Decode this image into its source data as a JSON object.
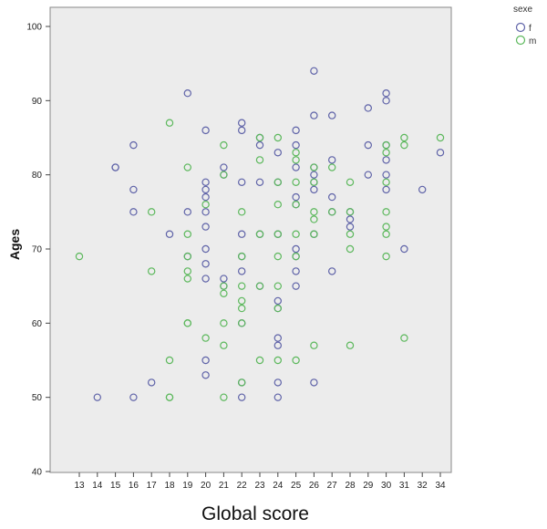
{
  "chart_data": {
    "type": "scatter",
    "xlabel": "Global score",
    "ylabel": "Ages",
    "x_ticks": [
      13,
      14,
      15,
      16,
      17,
      18,
      19,
      20,
      21,
      22,
      23,
      24,
      25,
      26,
      27,
      28,
      29,
      30,
      31,
      32,
      34
    ],
    "ylim": [
      40,
      100
    ],
    "y_ticks": [
      40,
      50,
      60,
      70,
      80,
      90,
      100
    ],
    "grid": false,
    "legend": {
      "title": "sexe",
      "placement": "top-right-outside"
    },
    "series": [
      {
        "name": "f",
        "color": "#5f63a8",
        "points": [
          [
            14,
            50
          ],
          [
            15,
            81
          ],
          [
            15,
            81
          ],
          [
            16,
            84
          ],
          [
            16,
            78
          ],
          [
            16,
            75
          ],
          [
            16,
            50
          ],
          [
            17,
            52
          ],
          [
            18,
            72
          ],
          [
            19,
            91
          ],
          [
            19,
            75
          ],
          [
            19,
            69
          ],
          [
            20,
            86
          ],
          [
            20,
            79
          ],
          [
            20,
            78
          ],
          [
            20,
            77
          ],
          [
            20,
            75
          ],
          [
            20,
            73
          ],
          [
            20,
            70
          ],
          [
            20,
            68
          ],
          [
            20,
            66
          ],
          [
            20,
            55
          ],
          [
            20,
            53
          ],
          [
            21,
            81
          ],
          [
            21,
            80
          ],
          [
            21,
            66
          ],
          [
            21,
            65
          ],
          [
            22,
            87
          ],
          [
            22,
            86
          ],
          [
            22,
            79
          ],
          [
            22,
            72
          ],
          [
            22,
            69
          ],
          [
            22,
            67
          ],
          [
            22,
            60
          ],
          [
            22,
            52
          ],
          [
            22,
            50
          ],
          [
            23,
            85
          ],
          [
            23,
            84
          ],
          [
            23,
            79
          ],
          [
            23,
            72
          ],
          [
            23,
            65
          ],
          [
            24,
            83
          ],
          [
            24,
            79
          ],
          [
            24,
            72
          ],
          [
            24,
            63
          ],
          [
            24,
            62
          ],
          [
            24,
            58
          ],
          [
            24,
            57
          ],
          [
            24,
            52
          ],
          [
            24,
            50
          ],
          [
            25,
            86
          ],
          [
            25,
            84
          ],
          [
            25,
            81
          ],
          [
            25,
            77
          ],
          [
            25,
            76
          ],
          [
            25,
            70
          ],
          [
            25,
            69
          ],
          [
            25,
            67
          ],
          [
            25,
            65
          ],
          [
            26,
            94
          ],
          [
            26,
            88
          ],
          [
            26,
            81
          ],
          [
            26,
            80
          ],
          [
            26,
            79
          ],
          [
            26,
            78
          ],
          [
            26,
            72
          ],
          [
            26,
            52
          ],
          [
            27,
            88
          ],
          [
            27,
            82
          ],
          [
            27,
            77
          ],
          [
            27,
            75
          ],
          [
            27,
            67
          ],
          [
            28,
            75
          ],
          [
            28,
            74
          ],
          [
            28,
            73
          ],
          [
            29,
            89
          ],
          [
            29,
            84
          ],
          [
            29,
            80
          ],
          [
            30,
            91
          ],
          [
            30,
            90
          ],
          [
            30,
            84
          ],
          [
            30,
            82
          ],
          [
            30,
            80
          ],
          [
            30,
            78
          ],
          [
            31,
            70
          ],
          [
            32,
            78
          ],
          [
            34,
            83
          ]
        ]
      },
      {
        "name": "m",
        "color": "#5cb85c",
        "points": [
          [
            13,
            69
          ],
          [
            17,
            75
          ],
          [
            17,
            67
          ],
          [
            18,
            87
          ],
          [
            18,
            55
          ],
          [
            18,
            50
          ],
          [
            18,
            50
          ],
          [
            19,
            81
          ],
          [
            19,
            72
          ],
          [
            19,
            69
          ],
          [
            19,
            67
          ],
          [
            19,
            66
          ],
          [
            19,
            60
          ],
          [
            19,
            60
          ],
          [
            20,
            76
          ],
          [
            20,
            58
          ],
          [
            21,
            84
          ],
          [
            21,
            80
          ],
          [
            21,
            65
          ],
          [
            21,
            64
          ],
          [
            21,
            60
          ],
          [
            21,
            57
          ],
          [
            21,
            50
          ],
          [
            22,
            75
          ],
          [
            22,
            69
          ],
          [
            22,
            65
          ],
          [
            22,
            63
          ],
          [
            22,
            62
          ],
          [
            22,
            60
          ],
          [
            22,
            52
          ],
          [
            23,
            85
          ],
          [
            23,
            82
          ],
          [
            23,
            72
          ],
          [
            23,
            65
          ],
          [
            23,
            55
          ],
          [
            24,
            85
          ],
          [
            24,
            79
          ],
          [
            24,
            76
          ],
          [
            24,
            72
          ],
          [
            24,
            69
          ],
          [
            24,
            65
          ],
          [
            24,
            62
          ],
          [
            24,
            55
          ],
          [
            25,
            83
          ],
          [
            25,
            82
          ],
          [
            25,
            79
          ],
          [
            25,
            76
          ],
          [
            25,
            72
          ],
          [
            25,
            69
          ],
          [
            25,
            55
          ],
          [
            26,
            81
          ],
          [
            26,
            79
          ],
          [
            26,
            75
          ],
          [
            26,
            74
          ],
          [
            26,
            72
          ],
          [
            26,
            57
          ],
          [
            27,
            81
          ],
          [
            27,
            75
          ],
          [
            28,
            79
          ],
          [
            28,
            75
          ],
          [
            28,
            72
          ],
          [
            28,
            70
          ],
          [
            28,
            57
          ],
          [
            30,
            84
          ],
          [
            30,
            83
          ],
          [
            30,
            79
          ],
          [
            30,
            75
          ],
          [
            30,
            73
          ],
          [
            30,
            72
          ],
          [
            30,
            69
          ],
          [
            31,
            85
          ],
          [
            31,
            84
          ],
          [
            31,
            58
          ],
          [
            34,
            85
          ]
        ]
      }
    ]
  }
}
